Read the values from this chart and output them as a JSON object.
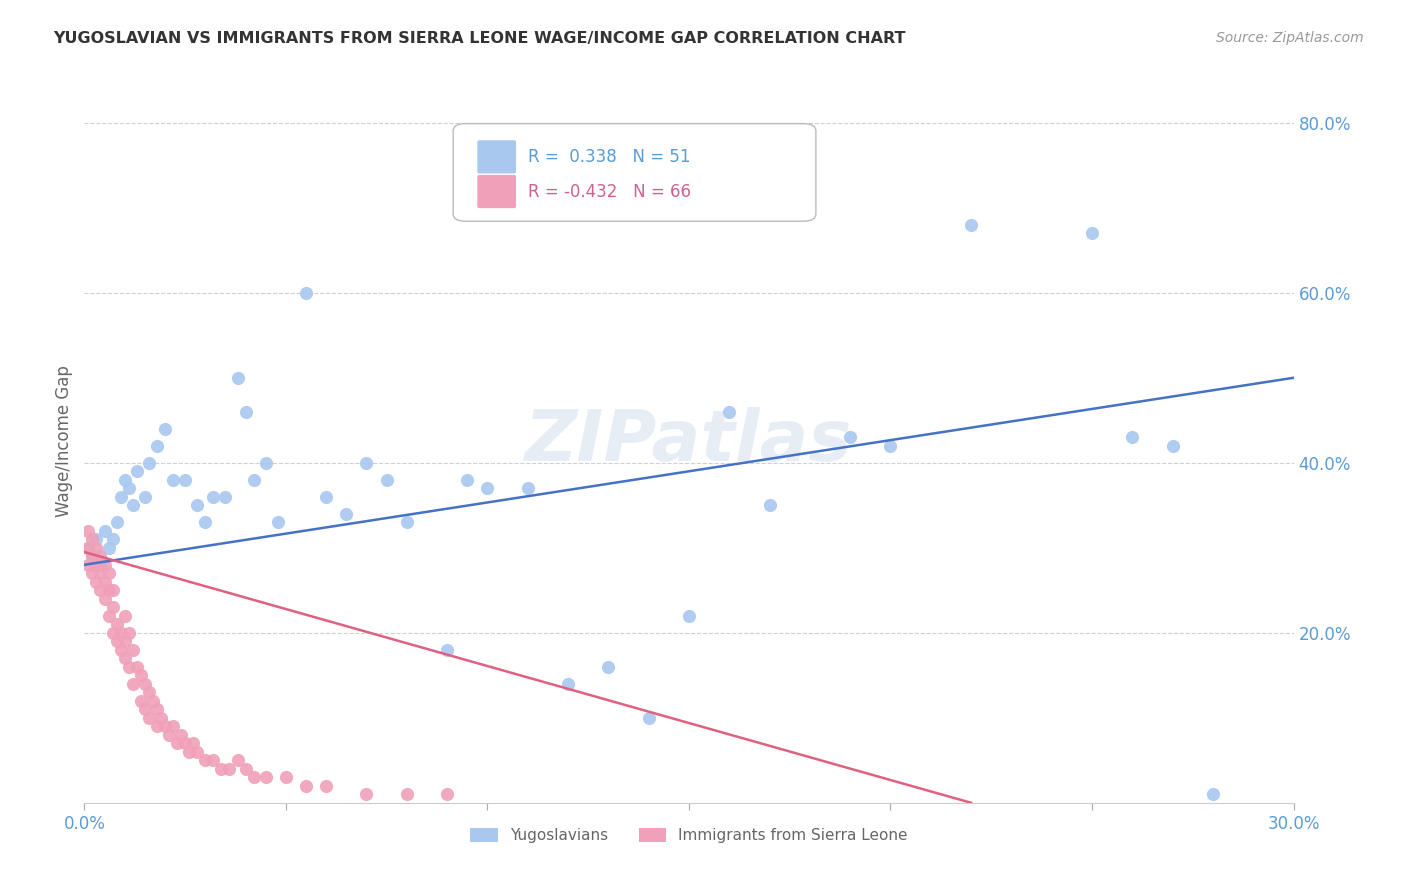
{
  "title": "YUGOSLAVIAN VS IMMIGRANTS FROM SIERRA LEONE WAGE/INCOME GAP CORRELATION CHART",
  "source": "Source: ZipAtlas.com",
  "ylabel": "Wage/Income Gap",
  "xlim": [
    0.0,
    0.3
  ],
  "ylim": [
    0.0,
    0.85
  ],
  "x_ticks": [
    0.0,
    0.05,
    0.1,
    0.15,
    0.2,
    0.25,
    0.3
  ],
  "x_tick_labels": [
    "0.0%",
    "",
    "",
    "",
    "",
    "",
    "30.0%"
  ],
  "y_ticks_right": [
    0.0,
    0.2,
    0.4,
    0.6,
    0.8
  ],
  "y_tick_labels_right": [
    "",
    "20.0%",
    "40.0%",
    "60.0%",
    "80.0%"
  ],
  "grid_color": "#d0d0d0",
  "background_color": "#ffffff",
  "blue_color": "#a8c8f0",
  "pink_color": "#f0a0b8",
  "blue_line_color": "#4472c4",
  "pink_line_color": "#e06080",
  "label_color": "#5b9bd5",
  "tick_color": "#5b9bd5",
  "R_blue": 0.338,
  "N_blue": 51,
  "R_pink": -0.432,
  "N_pink": 66,
  "blue_scatter_x": [
    0.001,
    0.002,
    0.003,
    0.004,
    0.005,
    0.006,
    0.007,
    0.008,
    0.009,
    0.01,
    0.011,
    0.012,
    0.013,
    0.015,
    0.016,
    0.018,
    0.02,
    0.022,
    0.025,
    0.028,
    0.03,
    0.032,
    0.035,
    0.038,
    0.04,
    0.042,
    0.045,
    0.048,
    0.055,
    0.06,
    0.065,
    0.07,
    0.075,
    0.08,
    0.09,
    0.095,
    0.1,
    0.11,
    0.12,
    0.13,
    0.14,
    0.15,
    0.16,
    0.17,
    0.19,
    0.2,
    0.22,
    0.25,
    0.26,
    0.27,
    0.28
  ],
  "blue_scatter_y": [
    0.3,
    0.29,
    0.31,
    0.28,
    0.32,
    0.3,
    0.31,
    0.33,
    0.36,
    0.38,
    0.37,
    0.35,
    0.39,
    0.36,
    0.4,
    0.42,
    0.44,
    0.38,
    0.38,
    0.35,
    0.33,
    0.36,
    0.36,
    0.5,
    0.46,
    0.38,
    0.4,
    0.33,
    0.6,
    0.36,
    0.34,
    0.4,
    0.38,
    0.33,
    0.18,
    0.38,
    0.37,
    0.37,
    0.14,
    0.16,
    0.1,
    0.22,
    0.46,
    0.35,
    0.43,
    0.42,
    0.68,
    0.67,
    0.43,
    0.42,
    0.01
  ],
  "pink_scatter_x": [
    0.001,
    0.001,
    0.001,
    0.002,
    0.002,
    0.002,
    0.003,
    0.003,
    0.003,
    0.004,
    0.004,
    0.004,
    0.005,
    0.005,
    0.005,
    0.006,
    0.006,
    0.006,
    0.007,
    0.007,
    0.007,
    0.008,
    0.008,
    0.009,
    0.009,
    0.01,
    0.01,
    0.01,
    0.011,
    0.011,
    0.012,
    0.012,
    0.013,
    0.014,
    0.014,
    0.015,
    0.015,
    0.016,
    0.016,
    0.017,
    0.018,
    0.018,
    0.019,
    0.02,
    0.021,
    0.022,
    0.023,
    0.024,
    0.025,
    0.026,
    0.027,
    0.028,
    0.03,
    0.032,
    0.034,
    0.036,
    0.038,
    0.04,
    0.042,
    0.045,
    0.05,
    0.055,
    0.06,
    0.07,
    0.08,
    0.09
  ],
  "pink_scatter_y": [
    0.3,
    0.28,
    0.32,
    0.29,
    0.27,
    0.31,
    0.28,
    0.26,
    0.3,
    0.27,
    0.25,
    0.29,
    0.26,
    0.24,
    0.28,
    0.25,
    0.22,
    0.27,
    0.23,
    0.2,
    0.25,
    0.21,
    0.19,
    0.2,
    0.18,
    0.22,
    0.19,
    0.17,
    0.2,
    0.16,
    0.18,
    0.14,
    0.16,
    0.15,
    0.12,
    0.14,
    0.11,
    0.13,
    0.1,
    0.12,
    0.11,
    0.09,
    0.1,
    0.09,
    0.08,
    0.09,
    0.07,
    0.08,
    0.07,
    0.06,
    0.07,
    0.06,
    0.05,
    0.05,
    0.04,
    0.04,
    0.05,
    0.04,
    0.03,
    0.03,
    0.03,
    0.02,
    0.02,
    0.01,
    0.01,
    0.01
  ],
  "watermark": "ZIPatlas",
  "blue_trend_x": [
    0.0,
    0.3
  ],
  "blue_trend_y": [
    0.28,
    0.5
  ],
  "pink_trend_x": [
    0.0,
    0.22
  ],
  "pink_trend_y": [
    0.295,
    0.0
  ]
}
